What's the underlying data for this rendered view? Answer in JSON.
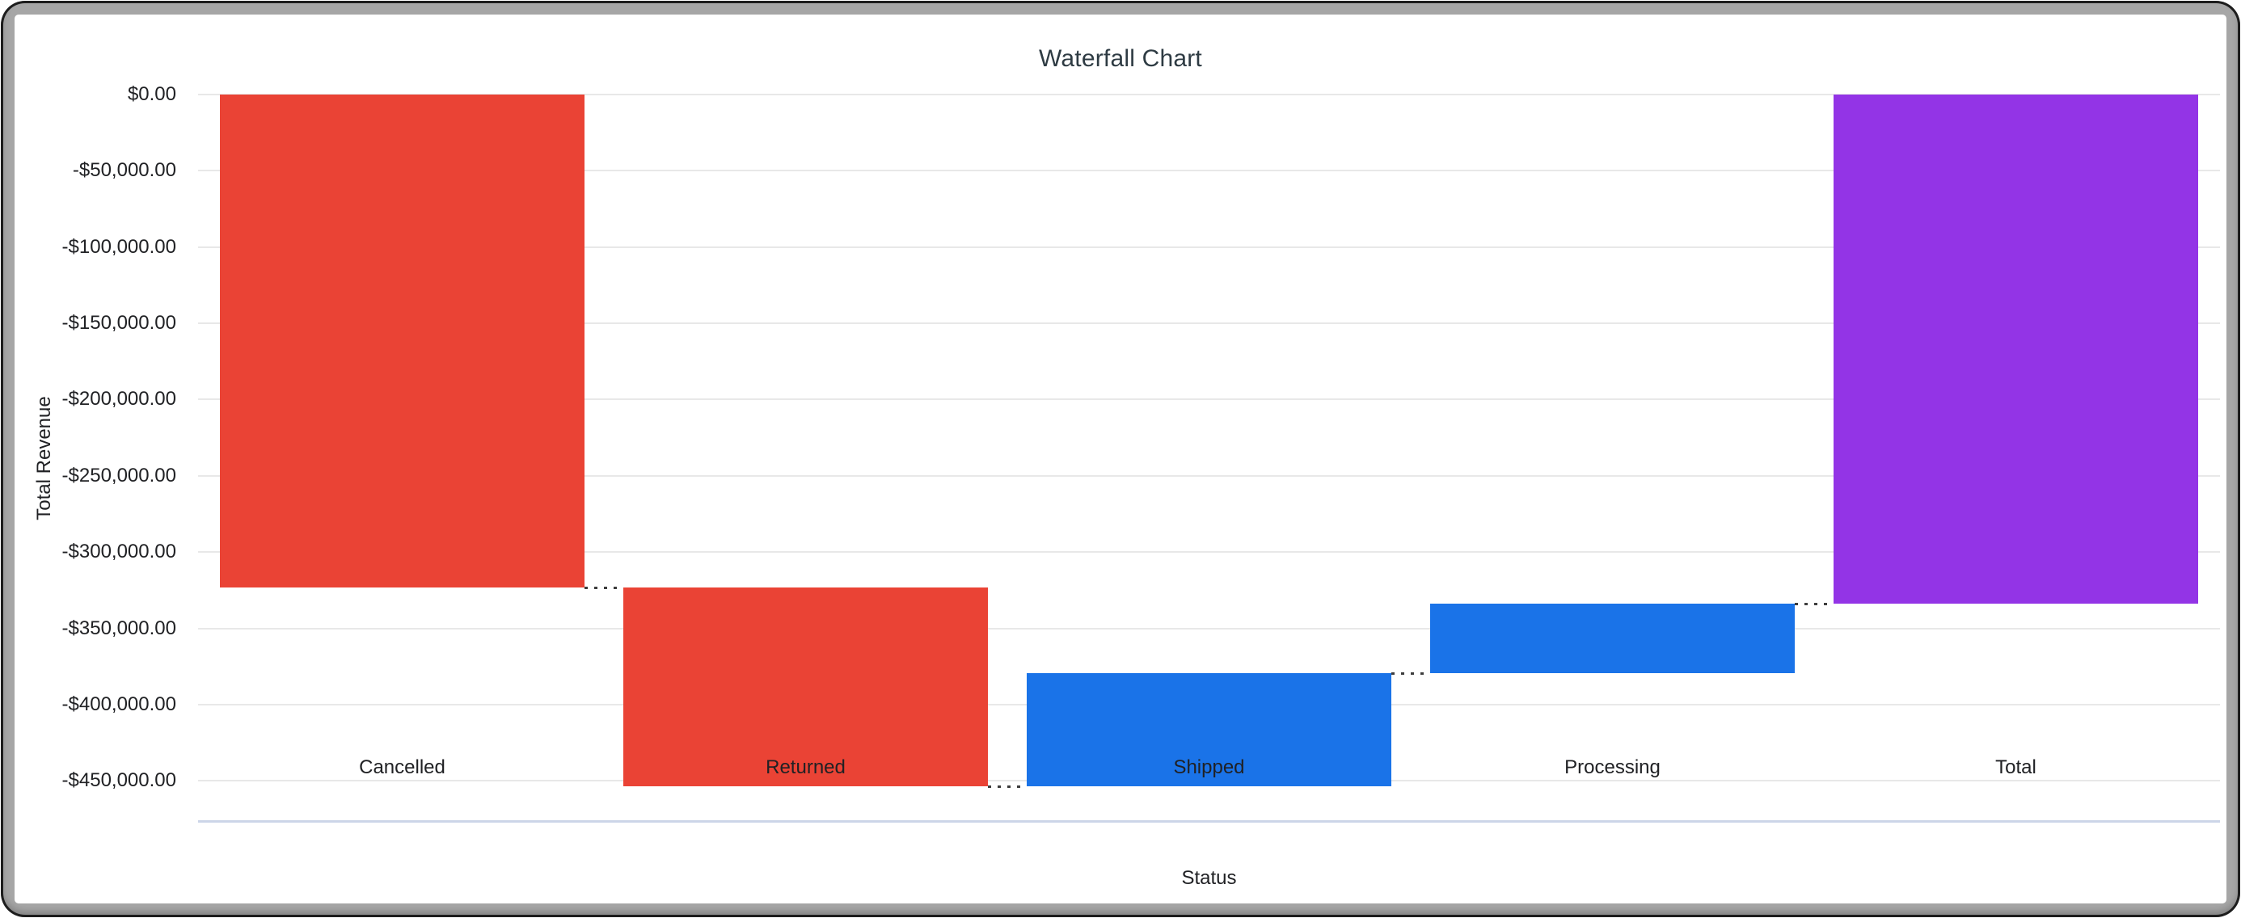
{
  "chart_data": {
    "type": "waterfall",
    "title": "Waterfall Chart",
    "xlabel": "Status",
    "ylabel": "Total Revenue",
    "categories": [
      "Cancelled",
      "Returned",
      "Shipped",
      "Processing",
      "Total"
    ],
    "series": [
      {
        "name": "Total Revenue",
        "measures": [
          "relative",
          "relative",
          "relative",
          "relative",
          "total"
        ],
        "values": [
          -323000,
          -130500,
          74300,
          45200,
          -334000
        ],
        "levels": [
          [
            0,
            -323000
          ],
          [
            -323000,
            -453500
          ],
          [
            -453500,
            -379200
          ],
          [
            -379200,
            -334000
          ],
          [
            0,
            -334000
          ]
        ]
      }
    ],
    "ytick_values": [
      0,
      -50000,
      -100000,
      -150000,
      -200000,
      -250000,
      -300000,
      -350000,
      -400000,
      -450000
    ],
    "ytick_labels": [
      "$0.00",
      "-$50,000.00",
      "-$100,000.00",
      "-$150,000.00",
      "-$200,000.00",
      "-$250,000.00",
      "-$300,000.00",
      "-$350,000.00",
      "-$400,000.00",
      "-$450,000.00"
    ],
    "ylim": [
      -476300,
      0
    ],
    "grid": "horizontal",
    "legend_position": "none",
    "colors": {
      "decrease": "#EA4335",
      "increase": "#1A73E8",
      "total": "#9334E6",
      "gridline": "#e8e8e8",
      "axis_line": "#ccd5e8",
      "connector": "#3d3d3d",
      "frame": "#a6a6a6",
      "frame_edge": "#1d1d1d",
      "text": "#202124"
    }
  }
}
